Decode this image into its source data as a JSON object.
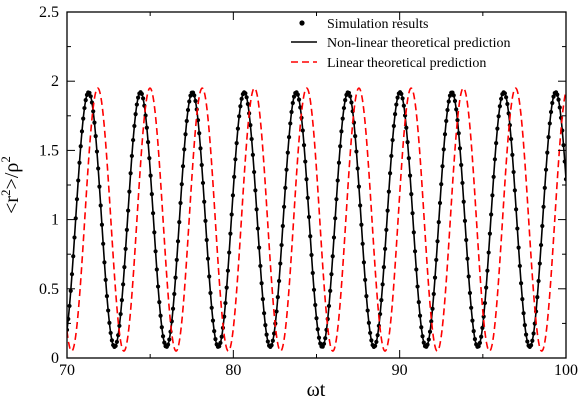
{
  "chart_data": {
    "type": "line",
    "title": "",
    "xlabel": "ωt",
    "ylabel": "<r²>/ρ²",
    "xlim": [
      70,
      100
    ],
    "ylim": [
      0,
      2.5
    ],
    "x_ticks": [
      "70",
      "80",
      "90",
      "100"
    ],
    "y_ticks": [
      "0",
      "0.5",
      "1",
      "1.5",
      "2",
      "2.5"
    ],
    "grid": false,
    "legend": {
      "placement": "top-right"
    },
    "series": [
      {
        "name": "Simulation results",
        "style": "dots",
        "color": "#000000",
        "period": 3.12,
        "phase_of_first_peak": 71.3,
        "amplitude_min": 0.08,
        "amplitude_max": 1.92,
        "peaks_x": [
          71.3,
          74.42,
          77.54,
          80.66,
          83.78,
          86.9,
          90.02,
          93.14,
          96.26,
          99.38
        ],
        "peak_y": 1.92,
        "trough_y": 0.08
      },
      {
        "name": "Non-linear theoretical prediction",
        "style": "solid",
        "color": "#000000",
        "period": 3.12,
        "phase_of_first_peak": 71.3,
        "amplitude_min": 0.08,
        "amplitude_max": 1.92,
        "peaks_x": [
          71.3,
          74.42,
          77.54,
          80.66,
          83.78,
          86.9,
          90.02,
          93.14,
          96.26,
          99.38
        ],
        "peak_y": 1.92,
        "trough_y": 0.08
      },
      {
        "name": "Linear theoretical prediction",
        "style": "dashed",
        "color": "#ff0000",
        "period": 3.14,
        "phase_of_first_peak": 71.85,
        "amplitude_min": 0.05,
        "amplitude_max": 1.95,
        "peaks_x": [
          71.85,
          74.99,
          78.13,
          81.27,
          84.42,
          87.56,
          90.7,
          93.84,
          96.98
        ],
        "peak_y": 1.95,
        "trough_y": 0.05
      }
    ]
  }
}
